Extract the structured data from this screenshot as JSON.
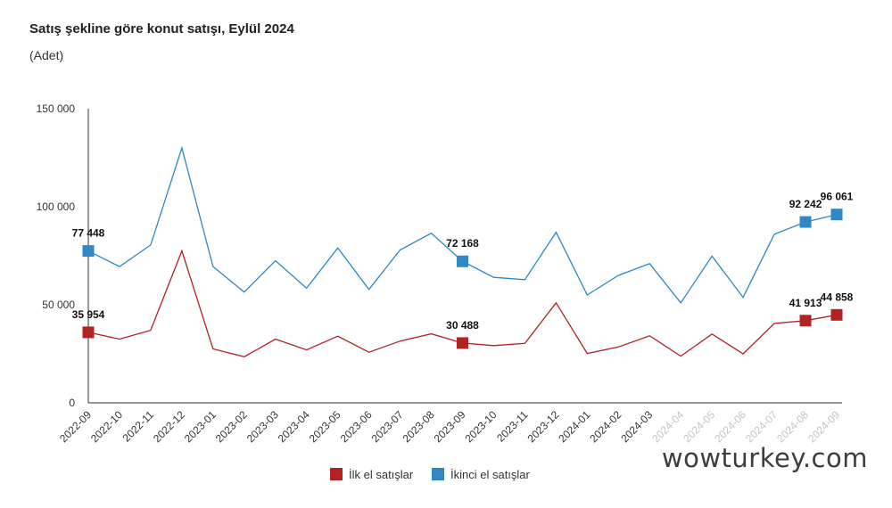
{
  "header": {
    "title": "Satış şekline göre konut satışı, Eylül 2024",
    "subtitle": "(Adet)"
  },
  "watermark": "wowturkey.com",
  "colors": {
    "first_sales": "#b22222",
    "second_sales": "#2f87c6"
  },
  "chart_data": {
    "type": "line",
    "title": "Satış şekline göre konut satışı, Eylül 2024",
    "ylabel": "(Adet)",
    "xlabel": "",
    "ylim": [
      0,
      150000
    ],
    "yticks": [
      0,
      50000,
      100000,
      150000
    ],
    "ytick_labels": [
      "0",
      "50 000",
      "100 000",
      "150 000"
    ],
    "categories": [
      "2022-09",
      "2022-10",
      "2022-11",
      "2022-12",
      "2023-01",
      "2023-02",
      "2023-03",
      "2023-04",
      "2023-05",
      "2023-06",
      "2023-07",
      "2023-08",
      "2023-09",
      "2023-10",
      "2023-11",
      "2023-12",
      "2024-01",
      "2024-02",
      "2024-03",
      "2024-04",
      "2024-05",
      "2024-06",
      "2024-07",
      "2024-08",
      "2024-09"
    ],
    "faded_categories": [
      "2024-04",
      "2024-05",
      "2024-06",
      "2024-07",
      "2024-08",
      "2024-09"
    ],
    "series": [
      {
        "name": "İlk el satışlar",
        "color": "#b22222",
        "values": [
          35954,
          32500,
          37000,
          77500,
          27500,
          23500,
          32500,
          27000,
          34000,
          25800,
          31500,
          35200,
          30488,
          29200,
          30300,
          51000,
          25200,
          28500,
          34200,
          23800,
          35100,
          25000,
          40500,
          41913,
          44858
        ],
        "markers": [
          0,
          12,
          23,
          24
        ],
        "labels": [
          "35 954",
          "30 488",
          "41 913",
          "44 858"
        ]
      },
      {
        "name": "İkinci el satışlar",
        "color": "#2f87c6",
        "values": [
          77448,
          69500,
          80500,
          130000,
          69500,
          56500,
          72500,
          58500,
          79000,
          57800,
          78000,
          86500,
          72168,
          64000,
          62800,
          87000,
          55000,
          65000,
          71000,
          51000,
          74800,
          53800,
          86000,
          92242,
          96061
        ],
        "markers": [
          0,
          12,
          23,
          24
        ],
        "labels": [
          "77 448",
          "72 168",
          "92 242",
          "96 061"
        ]
      }
    ],
    "legend": {
      "position": "bottom-center",
      "entries": [
        "İlk el satışlar",
        "İkinci el satışlar"
      ]
    }
  }
}
